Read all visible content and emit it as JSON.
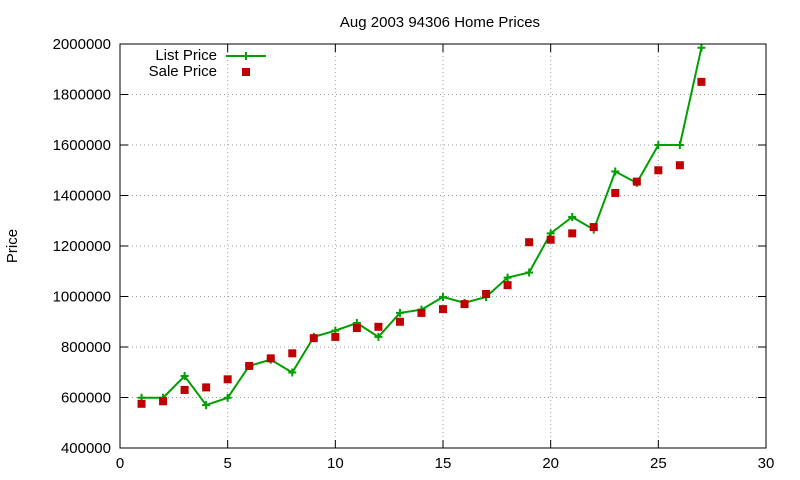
{
  "chart_data": {
    "type": "line",
    "title": "Aug 2003 94306 Home Prices",
    "xlabel": "",
    "ylabel": "Price",
    "xlim": [
      0,
      30
    ],
    "ylim": [
      400000,
      2000000
    ],
    "x_ticks": [
      "0",
      "5",
      "10",
      "15",
      "20",
      "25",
      "30"
    ],
    "y_ticks": [
      "400000",
      "600000",
      "800000",
      "1000000",
      "1200000",
      "1400000",
      "1600000",
      "1800000",
      "2000000"
    ],
    "grid": true,
    "legend_position": "top-left",
    "x": [
      1,
      2,
      3,
      4,
      5,
      6,
      7,
      8,
      9,
      10,
      11,
      12,
      13,
      14,
      15,
      16,
      17,
      18,
      19,
      20,
      21,
      22,
      23,
      24,
      25,
      26,
      27
    ],
    "series": [
      {
        "name": "List Price",
        "style": "linespoints",
        "color": "#00a000",
        "values": [
          599000,
          599000,
          685000,
          570000,
          599000,
          725000,
          750000,
          699000,
          840000,
          865000,
          895000,
          840000,
          935000,
          948000,
          998000,
          975000,
          998000,
          1075000,
          1095000,
          1250000,
          1315000,
          1265000,
          1495000,
          1450000,
          1600000,
          1600000,
          1985000
        ]
      },
      {
        "name": "Sale Price",
        "style": "points",
        "color": "#c00000",
        "values": [
          575000,
          585000,
          630000,
          640000,
          672000,
          725000,
          755000,
          775000,
          835000,
          840000,
          875000,
          880000,
          900000,
          935000,
          950000,
          970000,
          1010000,
          1045000,
          1215000,
          1225000,
          1250000,
          1275000,
          1410000,
          1455000,
          1500000,
          1520000,
          1850000
        ]
      }
    ]
  }
}
